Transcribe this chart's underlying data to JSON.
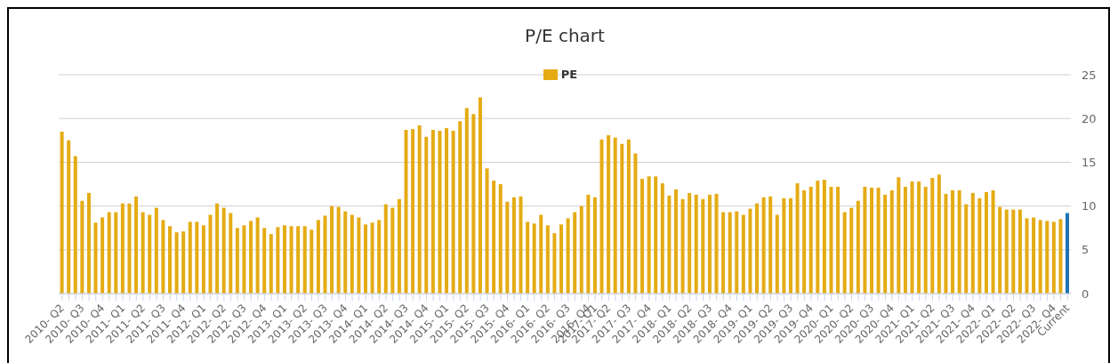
{
  "chart_data": {
    "type": "bar",
    "title": "P/E chart",
    "categories": [
      "2010- Q2",
      null,
      null,
      "2010- Q3",
      null,
      null,
      "2010- Q4",
      null,
      null,
      "2011- Q1",
      null,
      null,
      "2011- Q2",
      null,
      null,
      "2011- Q3",
      null,
      null,
      "2011- Q4",
      null,
      null,
      "2012- Q1",
      null,
      null,
      "2012- Q2",
      null,
      null,
      "2012- Q3",
      null,
      null,
      "2012- Q4",
      null,
      null,
      "2013- Q1",
      null,
      null,
      "2013- Q2",
      null,
      null,
      "2013- Q3",
      null,
      null,
      "2013- Q4",
      null,
      null,
      "2014- Q1",
      null,
      null,
      "2014- Q2",
      null,
      null,
      "2014- Q3",
      null,
      null,
      "2014- Q4",
      null,
      null,
      "2015- Q1",
      null,
      null,
      "2015- Q2",
      null,
      null,
      "2015- Q3",
      null,
      null,
      "2015- Q4",
      null,
      null,
      "2016- Q1",
      null,
      null,
      "2016- Q2",
      null,
      null,
      "2016- Q3",
      null,
      null,
      "2016- Q4",
      "2017- Q1",
      null,
      "2017- Q2",
      null,
      null,
      "2017- Q3",
      null,
      null,
      "2017- Q4",
      null,
      null,
      "2018- Q1",
      null,
      null,
      "2018- Q2",
      null,
      null,
      "2018- Q3",
      null,
      null,
      "2018- Q4",
      null,
      null,
      "2019- Q1",
      null,
      null,
      "2019- Q2",
      null,
      null,
      "2019- Q3",
      null,
      null,
      "2019- Q4",
      null,
      null,
      "2020- Q1",
      null,
      null,
      "2020- Q2",
      null,
      null,
      "2020- Q3",
      null,
      null,
      "2020- Q4",
      null,
      null,
      "2021- Q1",
      null,
      null,
      "2021- Q2",
      null,
      null,
      "2021- Q3",
      null,
      null,
      "2021- Q4",
      null,
      null,
      "2022- Q1",
      null,
      null,
      "2022- Q2",
      null,
      null,
      "2022- Q3",
      null,
      null,
      "2022- Q4",
      null,
      "Current"
    ],
    "series": [
      {
        "name": "PE",
        "color": "#e4ab14",
        "values": [
          18.5,
          17.5,
          15.7,
          10.6,
          11.5,
          8.1,
          8.7,
          9.3,
          9.3,
          10.3,
          10.3,
          11.1,
          9.3,
          9.0,
          9.8,
          8.4,
          7.7,
          7.0,
          7.1,
          8.2,
          8.2,
          7.8,
          9.0,
          10.3,
          9.8,
          9.2,
          7.5,
          7.8,
          8.3,
          8.7,
          7.5,
          6.8,
          7.6,
          7.8,
          7.7,
          7.7,
          7.7,
          7.3,
          8.4,
          8.9,
          10.0,
          9.9,
          9.4,
          9.0,
          8.7,
          7.9,
          8.1,
          8.4,
          10.2,
          9.8,
          10.8,
          18.7,
          18.8,
          19.2,
          17.9,
          18.7,
          18.6,
          18.9,
          18.6,
          19.7,
          21.2,
          20.5,
          22.4,
          14.3,
          12.9,
          12.5,
          10.5,
          11.0,
          11.1,
          8.2,
          8.0,
          9.0,
          7.8,
          6.9,
          7.9,
          8.6,
          9.3,
          10.0,
          11.3,
          11.0,
          17.6,
          18.1,
          17.8,
          17.1,
          17.6,
          16.0,
          13.1,
          13.4,
          13.4,
          12.6,
          11.2,
          11.9,
          10.8,
          11.5,
          11.3,
          10.8,
          11.3,
          11.4,
          9.3,
          9.3,
          9.4,
          9.0,
          9.7,
          10.3,
          11.0,
          11.1,
          9.0,
          10.9,
          10.9,
          12.6,
          11.8,
          12.2,
          12.9,
          13.0,
          12.2,
          12.2,
          9.3,
          9.8,
          10.6,
          12.2,
          12.1,
          12.1,
          11.3,
          11.8,
          13.3,
          12.2,
          12.8,
          12.8,
          12.2,
          13.2,
          13.6,
          11.4,
          11.8,
          11.8,
          10.2,
          11.5,
          10.9,
          11.6,
          11.8,
          9.9,
          9.6,
          9.6,
          9.6,
          8.6,
          8.7,
          8.4,
          8.3,
          8.2,
          8.5,
          9.2
        ],
        "colors": [
          "#e4ab14",
          "#e4ab14",
          "#e4ab14",
          "#e4ab14",
          "#e4ab14",
          "#e4ab14",
          "#e4ab14",
          "#e4ab14",
          "#e4ab14",
          "#e4ab14",
          "#e4ab14",
          "#e4ab14",
          "#e4ab14",
          "#e4ab14",
          "#e4ab14",
          "#e4ab14",
          "#e4ab14",
          "#e4ab14",
          "#e4ab14",
          "#e4ab14",
          "#e4ab14",
          "#e4ab14",
          "#e4ab14",
          "#e4ab14",
          "#e4ab14",
          "#e4ab14",
          "#e4ab14",
          "#e4ab14",
          "#e4ab14",
          "#e4ab14",
          "#e4ab14",
          "#e4ab14",
          "#e4ab14",
          "#e4ab14",
          "#e4ab14",
          "#e4ab14",
          "#e4ab14",
          "#e4ab14",
          "#e4ab14",
          "#e4ab14",
          "#e4ab14",
          "#e4ab14",
          "#e4ab14",
          "#e4ab14",
          "#e4ab14",
          "#e4ab14",
          "#e4ab14",
          "#e4ab14",
          "#e4ab14",
          "#e4ab14",
          "#e4ab14",
          "#e4ab14",
          "#e4ab14",
          "#e4ab14",
          "#e4ab14",
          "#e4ab14",
          "#e4ab14",
          "#e4ab14",
          "#e4ab14",
          "#e4ab14",
          "#e4ab14",
          "#e4ab14",
          "#e4ab14",
          "#e4ab14",
          "#e4ab14",
          "#e4ab14",
          "#e4ab14",
          "#e4ab14",
          "#e4ab14",
          "#e4ab14",
          "#e4ab14",
          "#e4ab14",
          "#e4ab14",
          "#e4ab14",
          "#e4ab14",
          "#e4ab14",
          "#e4ab14",
          "#e4ab14",
          "#e4ab14",
          "#e4ab14",
          "#e4ab14",
          "#e4ab14",
          "#e4ab14",
          "#e4ab14",
          "#e4ab14",
          "#e4ab14",
          "#e4ab14",
          "#e4ab14",
          "#e4ab14",
          "#e4ab14",
          "#e4ab14",
          "#e4ab14",
          "#e4ab14",
          "#e4ab14",
          "#e4ab14",
          "#e4ab14",
          "#e4ab14",
          "#e4ab14",
          "#e4ab14",
          "#e4ab14",
          "#e4ab14",
          "#e4ab14",
          "#e4ab14",
          "#e4ab14",
          "#e4ab14",
          "#e4ab14",
          "#e4ab14",
          "#e4ab14",
          "#e4ab14",
          "#e4ab14",
          "#e4ab14",
          "#e4ab14",
          "#e4ab14",
          "#e4ab14",
          "#e4ab14",
          "#e4ab14",
          "#e4ab14",
          "#e4ab14",
          "#e4ab14",
          "#e4ab14",
          "#e4ab14",
          "#e4ab14",
          "#e4ab14",
          "#e4ab14",
          "#e4ab14",
          "#e4ab14",
          "#e4ab14",
          "#e4ab14",
          "#e4ab14",
          "#e4ab14",
          "#e4ab14",
          "#e4ab14",
          "#e4ab14",
          "#e4ab14",
          "#e4ab14",
          "#e4ab14",
          "#e4ab14",
          "#e4ab14",
          "#e4ab14",
          "#e4ab14",
          "#e4ab14",
          "#e4ab14",
          "#e4ab14",
          "#e4ab14",
          "#e4ab14",
          "#e4ab14",
          "#e4ab14",
          "#e4ab14",
          "#e4ab14",
          "#1f74b4"
        ]
      }
    ],
    "ylim": [
      0,
      25
    ],
    "yticks": [
      0,
      5,
      10,
      15,
      20,
      25
    ],
    "grid": "y",
    "legend": "top"
  }
}
